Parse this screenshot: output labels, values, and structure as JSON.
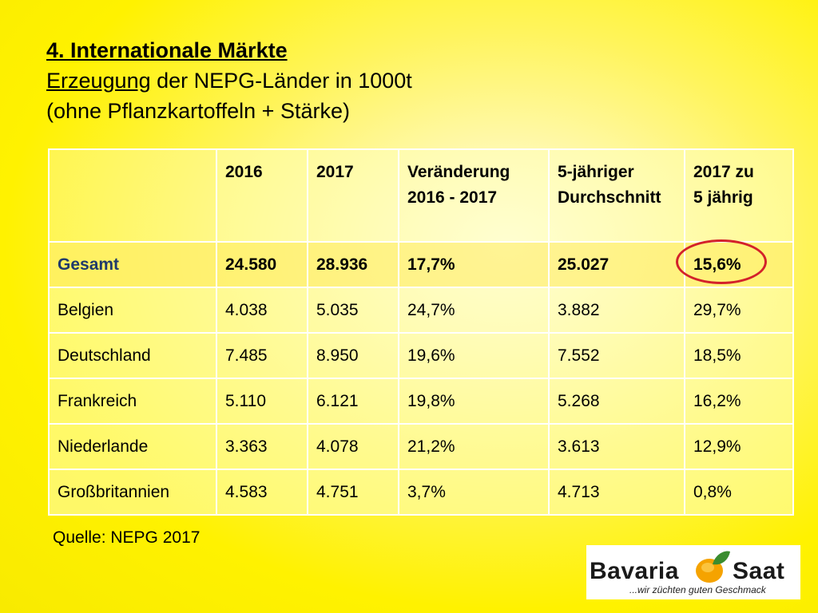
{
  "title": {
    "line1": "4. Internationale Märkte",
    "line2_underlined": "Erzeugung",
    "line2_rest": " der NEPG-Länder in 1000t",
    "line3": "(ohne Pflanzkartoffeln + Stärke)"
  },
  "table": {
    "headers": [
      [
        "",
        ""
      ],
      [
        "2016",
        ""
      ],
      [
        "2017",
        ""
      ],
      [
        "Veränderung",
        "2016 - 2017"
      ],
      [
        "5-jähriger",
        "Durchschnitt"
      ],
      [
        "2017 zu",
        "5 jährig"
      ]
    ],
    "rows": [
      [
        "Gesamt",
        "24.580",
        "28.936",
        "17,7%",
        "25.027",
        "15,6%"
      ],
      [
        "Belgien",
        "4.038",
        "5.035",
        "24,7%",
        "3.882",
        "29,7%"
      ],
      [
        "Deutschland",
        "7.485",
        "8.950",
        "19,6%",
        "7.552",
        "18,5%"
      ],
      [
        "Frankreich",
        "5.110",
        "6.121",
        "19,8%",
        "5.268",
        "16,2%"
      ],
      [
        "Niederlande",
        "3.363",
        "4.078",
        "21,2%",
        "3.613",
        "12,9%"
      ],
      [
        "Großbritannien",
        "4.583",
        "4.751",
        "3,7%",
        "4.713",
        "0,8%"
      ]
    ]
  },
  "source": "Quelle: NEPG 2017",
  "logo": {
    "word_left": "Bavaria",
    "word_right": "Saat",
    "tagline": "...wir züchten guten Geschmack"
  },
  "colors": {
    "background": "#fff200",
    "highlight_ring": "#d3222a",
    "total_label": "#1f3a6b",
    "logo_orange": "#f5a300",
    "logo_green": "#3a8c2f"
  }
}
